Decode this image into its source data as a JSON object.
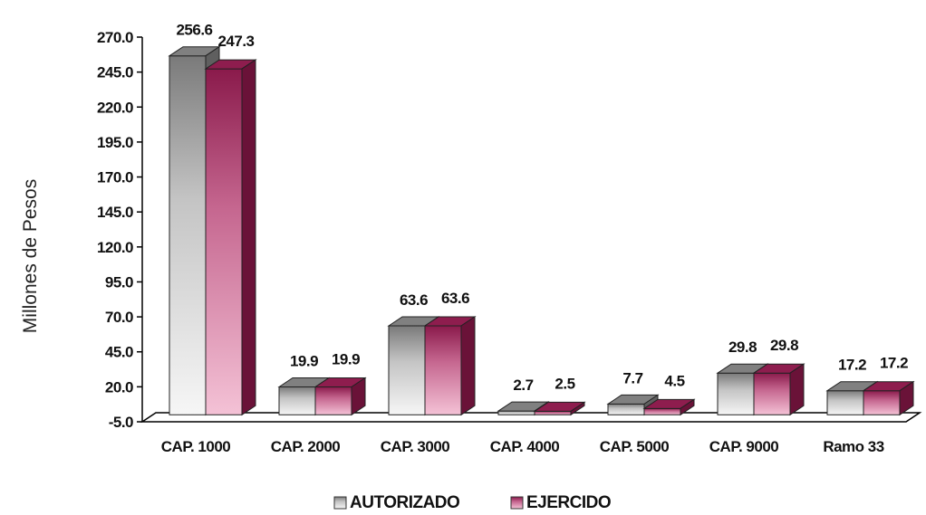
{
  "chart_data": {
    "type": "bar",
    "title": "",
    "xlabel": "",
    "ylabel": "Millones de Pesos",
    "ylim": [
      -5.0,
      270.0
    ],
    "yticks": [
      "270.0",
      "245.0",
      "220.0",
      "195.0",
      "170.0",
      "145.0",
      "120.0",
      "95.0",
      "70.0",
      "45.0",
      "20.0",
      "-5.0"
    ],
    "categories": [
      "CAP. 1000",
      "CAP. 2000",
      "CAP. 3000",
      "CAP. 4000",
      "CAP. 5000",
      "CAP. 9000",
      "Ramo 33"
    ],
    "series": [
      {
        "name": "AUTORIZADO",
        "values": [
          256.6,
          19.9,
          63.6,
          2.7,
          7.7,
          29.8,
          17.2
        ],
        "labels": [
          "256.6",
          "19.9",
          "63.6",
          "2.7",
          "7.7",
          "29.8",
          "17.2"
        ]
      },
      {
        "name": "EJERCIDO",
        "values": [
          247.3,
          19.9,
          63.6,
          2.5,
          4.5,
          29.8,
          17.2
        ],
        "labels": [
          "247.3",
          "19.9",
          "63.6",
          "2.5",
          "4.5",
          "29.8",
          "17.2"
        ]
      }
    ],
    "legend_position": "bottom",
    "grid": false,
    "style": "3d-clustered-column"
  },
  "colors": {
    "autorizado_light": "#f4f4f4",
    "autorizado_dark": "#808080",
    "ejercido_light": "#f2b8d0",
    "ejercido_dark": "#8e1d4e"
  }
}
